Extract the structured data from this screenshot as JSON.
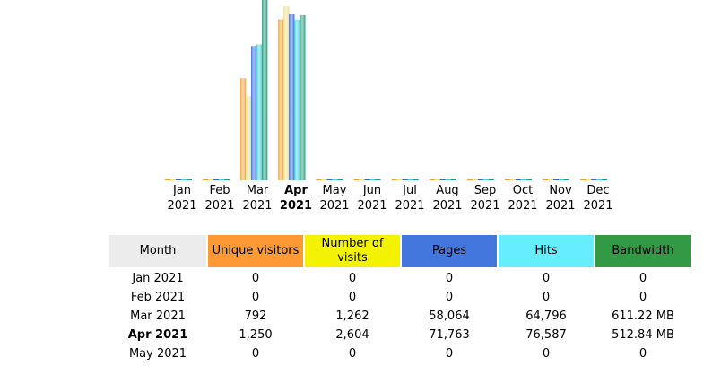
{
  "chart_data": {
    "type": "bar",
    "categories": [
      "Jan 2021",
      "Feb 2021",
      "Mar 2021",
      "Apr 2021",
      "May 2021",
      "Jun 2021",
      "Jul 2021",
      "Aug 2021",
      "Sep 2021",
      "Oct 2021",
      "Nov 2021",
      "Dec 2021"
    ],
    "current_category": "Apr 2021",
    "series": [
      {
        "name": "Unique visitors",
        "color": "#f0a030",
        "values": [
          0,
          0,
          792,
          1250,
          0,
          0,
          0,
          0,
          0,
          0,
          0,
          0
        ]
      },
      {
        "name": "Number of visits",
        "color": "#ece08a",
        "values": [
          0,
          0,
          1262,
          2604,
          0,
          0,
          0,
          0,
          0,
          0,
          0,
          0
        ]
      },
      {
        "name": "Pages",
        "color": "#3366dd",
        "values": [
          0,
          0,
          58064,
          71763,
          0,
          0,
          0,
          0,
          0,
          0,
          0,
          0
        ]
      },
      {
        "name": "Hits",
        "color": "#40d0d8",
        "values": [
          0,
          0,
          64796,
          76587,
          0,
          0,
          0,
          0,
          0,
          0,
          0,
          0
        ]
      },
      {
        "name": "Bandwidth",
        "color": "#1e9a78",
        "values": [
          0,
          0,
          611.22,
          512.84,
          0,
          0,
          0,
          0,
          0,
          0,
          0,
          0
        ]
      }
    ]
  },
  "months": [
    {
      "m": "Jan",
      "y": "2021"
    },
    {
      "m": "Feb",
      "y": "2021"
    },
    {
      "m": "Mar",
      "y": "2021"
    },
    {
      "m": "Apr",
      "y": "2021"
    },
    {
      "m": "May",
      "y": "2021"
    },
    {
      "m": "Jun",
      "y": "2021"
    },
    {
      "m": "Jul",
      "y": "2021"
    },
    {
      "m": "Aug",
      "y": "2021"
    },
    {
      "m": "Sep",
      "y": "2021"
    },
    {
      "m": "Oct",
      "y": "2021"
    },
    {
      "m": "Nov",
      "y": "2021"
    },
    {
      "m": "Dec",
      "y": "2021"
    }
  ],
  "table": {
    "headers": {
      "month": "Month",
      "unique_visitors": "Unique visitors",
      "visits": "Number of visits",
      "pages": "Pages",
      "hits": "Hits",
      "bandwidth": "Bandwidth"
    },
    "rows": [
      {
        "month": "Jan 2021",
        "unique": "0",
        "visits": "0",
        "pages": "0",
        "hits": "0",
        "bandwidth": "0"
      },
      {
        "month": "Feb 2021",
        "unique": "0",
        "visits": "0",
        "pages": "0",
        "hits": "0",
        "bandwidth": "0"
      },
      {
        "month": "Mar 2021",
        "unique": "792",
        "visits": "1,262",
        "pages": "58,064",
        "hits": "64,796",
        "bandwidth": "611.22 MB"
      },
      {
        "month": "Apr 2021",
        "unique": "1,250",
        "visits": "2,604",
        "pages": "71,763",
        "hits": "76,587",
        "bandwidth": "512.84 MB"
      },
      {
        "month": "May 2021",
        "unique": "0",
        "visits": "0",
        "pages": "0",
        "hits": "0",
        "bandwidth": "0"
      }
    ]
  }
}
